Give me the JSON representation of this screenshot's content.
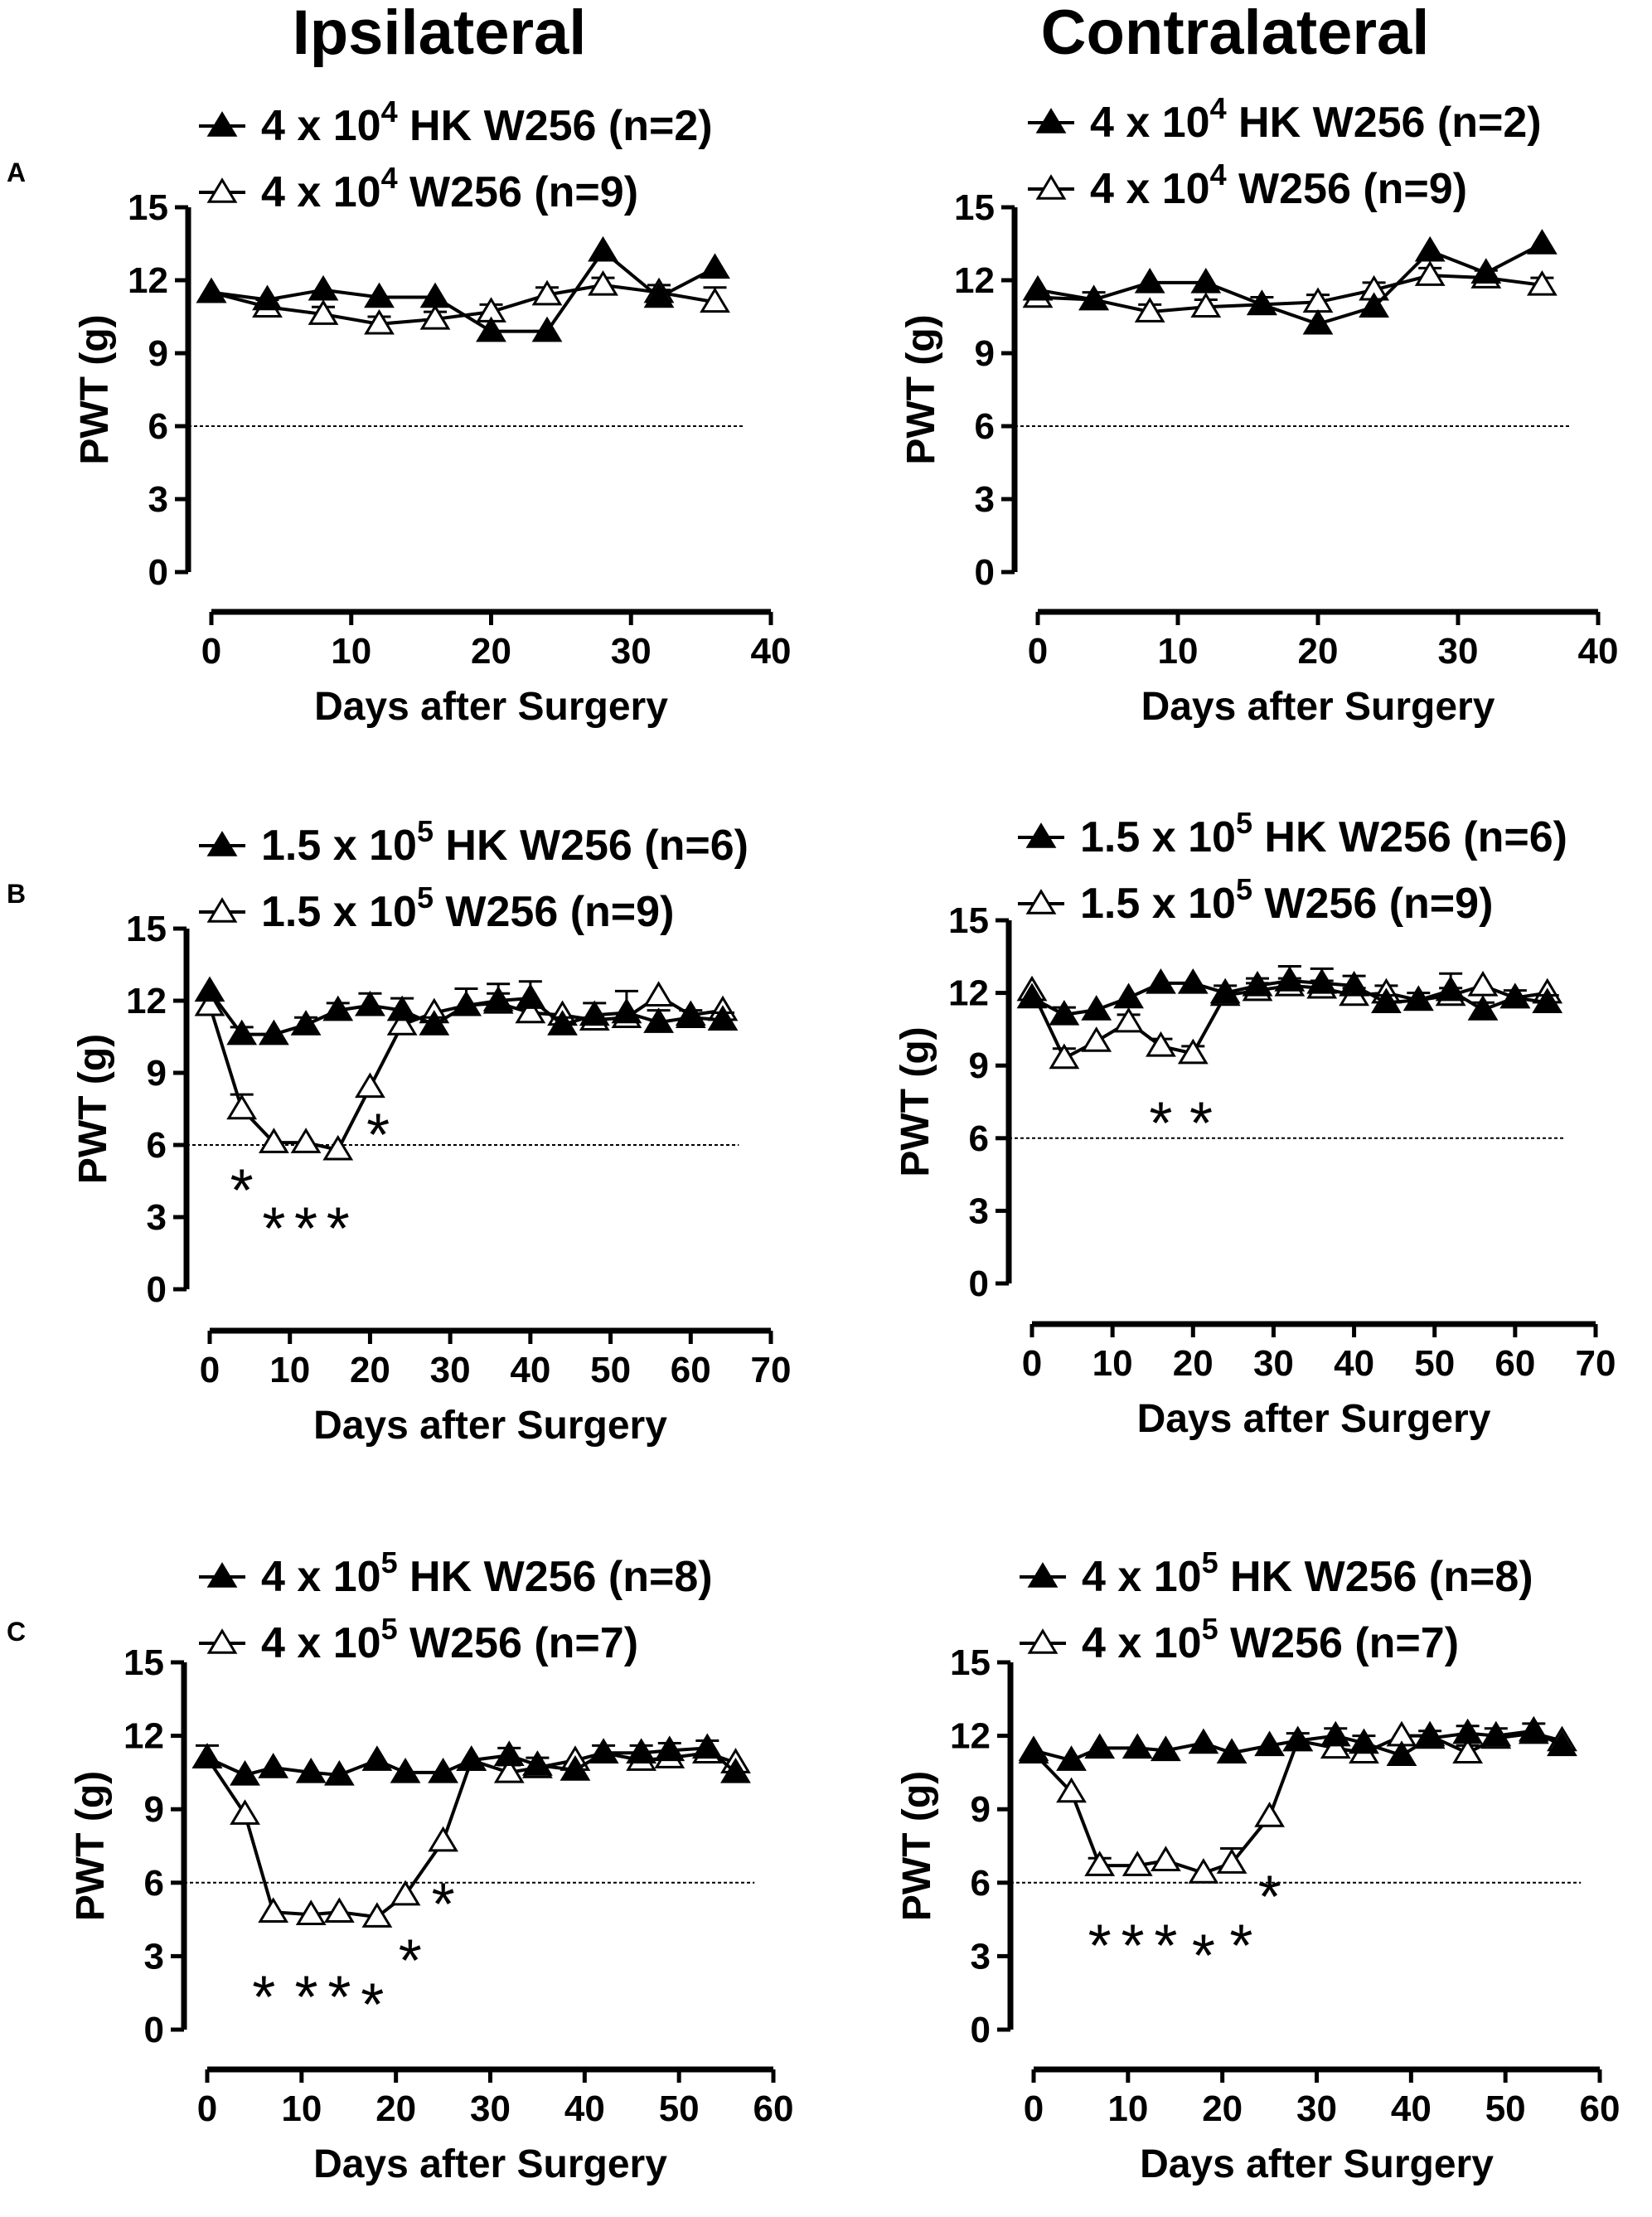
{
  "titles": {
    "left": "Ipsilateral",
    "right": "Contralateral"
  },
  "row_letters": [
    "A",
    "B",
    "C"
  ],
  "common": {
    "ylabel": "PWT (g)",
    "xlabel": "Days after Surgery",
    "threshold": 6,
    "ylim": [
      0,
      15
    ],
    "yticks": [
      0,
      3,
      6,
      9,
      12,
      15
    ]
  },
  "chart_data": [
    {
      "type": "line",
      "panel": "A",
      "side": "Ipsilateral",
      "xlim": [
        0,
        40
      ],
      "xticks": [
        0,
        10,
        20,
        30,
        40
      ],
      "legend": [
        {
          "prefix": "4 x 10",
          "sup": "4",
          "suffix": " HK W256 (n=2)"
        },
        {
          "prefix": "4 x 10",
          "sup": "4",
          "suffix": " W256 (n=9)"
        }
      ],
      "series": [
        {
          "name": "4 x 10^4 HK W256 (n=2)",
          "marker": "filled-triangle",
          "x": [
            0,
            4,
            8,
            12,
            16,
            20,
            24,
            28,
            32,
            36
          ],
          "y": [
            11.5,
            11.2,
            11.6,
            11.3,
            11.3,
            9.9,
            9.9,
            13.2,
            11.3,
            12.5
          ],
          "err": [
            0,
            0,
            0,
            0,
            0,
            0,
            0,
            0,
            0.3,
            0
          ]
        },
        {
          "name": "4 x 10^4 W256 (n=9)",
          "marker": "open-triangle",
          "x": [
            0,
            4,
            8,
            12,
            16,
            20,
            24,
            28,
            32,
            36
          ],
          "y": [
            11.5,
            10.9,
            10.6,
            10.2,
            10.4,
            10.7,
            11.4,
            11.8,
            11.5,
            11.1
          ],
          "err": [
            0,
            0.3,
            0.3,
            0.3,
            0.3,
            0.3,
            0.3,
            0.3,
            0.3,
            0.6
          ]
        }
      ],
      "stars": []
    },
    {
      "type": "line",
      "panel": "A",
      "side": "Contralateral",
      "xlim": [
        0,
        40
      ],
      "xticks": [
        0,
        10,
        20,
        30,
        40
      ],
      "legend": [
        {
          "prefix": "4 x 10",
          "sup": "4",
          "suffix": " HK W256 (n=2)"
        },
        {
          "prefix": "4 x 10",
          "sup": "4",
          "suffix": " W256 (n=9)"
        }
      ],
      "series": [
        {
          "name": "4 x 10^4 HK W256 (n=2)",
          "marker": "filled-triangle",
          "x": [
            0,
            4,
            8,
            12,
            16,
            20,
            24,
            28,
            32,
            36
          ],
          "y": [
            11.6,
            11.2,
            11.9,
            11.9,
            11.0,
            10.2,
            10.9,
            13.2,
            12.3,
            13.5
          ],
          "err": [
            0,
            0,
            0,
            0,
            0,
            0,
            0,
            0,
            0,
            0
          ]
        },
        {
          "name": "4 x 10^4 W256 (n=9)",
          "marker": "open-triangle",
          "x": [
            0,
            4,
            8,
            12,
            16,
            20,
            24,
            28,
            32,
            36
          ],
          "y": [
            11.3,
            11.2,
            10.7,
            10.9,
            11.0,
            11.1,
            11.6,
            12.2,
            12.1,
            11.8
          ],
          "err": [
            0,
            0.3,
            0.3,
            0.3,
            0.3,
            0.3,
            0.3,
            0.3,
            0.3,
            0.3
          ]
        }
      ],
      "stars": []
    },
    {
      "type": "line",
      "panel": "B",
      "side": "Ipsilateral",
      "xlim": [
        0,
        70
      ],
      "xticks": [
        0,
        10,
        20,
        30,
        40,
        50,
        60,
        70
      ],
      "legend": [
        {
          "prefix": "1.5 x 10",
          "sup": "5",
          "suffix": " HK W256 (n=6)"
        },
        {
          "prefix": "1.5 x 10",
          "sup": "5",
          "suffix": " W256 (n=9)"
        }
      ],
      "series": [
        {
          "name": "1.5 x 10^5 HK W256 (n=6)",
          "marker": "filled-triangle",
          "x": [
            0,
            4,
            8,
            12,
            16,
            20,
            24,
            28,
            32,
            36,
            40,
            44,
            48,
            52,
            56,
            60,
            64
          ],
          "y": [
            12.4,
            10.6,
            10.6,
            11.0,
            11.6,
            11.8,
            11.6,
            11.0,
            11.8,
            12.0,
            12.1,
            11.0,
            11.4,
            11.5,
            11.1,
            11.3,
            11.2
          ],
          "err": [
            0,
            0.3,
            0,
            0.3,
            0.3,
            0.5,
            0.5,
            0.3,
            0.7,
            0.7,
            0.7,
            0.3,
            0.5,
            0.9,
            0.5,
            0.3,
            0.3
          ]
        },
        {
          "name": "1.5 x 10^5 W256 (n=9)",
          "marker": "open-triangle",
          "x": [
            0,
            4,
            8,
            12,
            16,
            20,
            24,
            28,
            32,
            36,
            40,
            44,
            48,
            52,
            56,
            60,
            64
          ],
          "y": [
            11.8,
            7.5,
            6.1,
            6.1,
            5.8,
            8.4,
            11.0,
            11.5,
            11.8,
            11.9,
            11.5,
            11.4,
            11.2,
            11.3,
            12.2,
            11.4,
            11.6
          ],
          "err": [
            0,
            0.6,
            0,
            0,
            0,
            0,
            0,
            0,
            0,
            0.4,
            0,
            0,
            0,
            0,
            0,
            0,
            0
          ]
        }
      ],
      "stars": [
        {
          "x": 4,
          "y": 4.3,
          "label": "*"
        },
        {
          "x": 8,
          "y": 2.7,
          "label": "*"
        },
        {
          "x": 12,
          "y": 2.7,
          "label": "*"
        },
        {
          "x": 16,
          "y": 2.7,
          "label": "*"
        },
        {
          "x": 21,
          "y": 6.6,
          "label": "*"
        }
      ]
    },
    {
      "type": "line",
      "panel": "B",
      "side": "Contralateral",
      "xlim": [
        0,
        70
      ],
      "xticks": [
        0,
        10,
        20,
        30,
        40,
        50,
        60,
        70
      ],
      "legend": [
        {
          "prefix": "1.5 x 10",
          "sup": "5",
          "suffix": " HK W256 (n=6)"
        },
        {
          "prefix": "1.5 x 10",
          "sup": "5",
          "suffix": " W256 (n=9)"
        }
      ],
      "series": [
        {
          "name": "1.5 x 10^5 HK W256 (n=6)",
          "marker": "filled-triangle",
          "x": [
            0,
            4,
            8,
            12,
            16,
            20,
            24,
            28,
            32,
            36,
            40,
            44,
            48,
            52,
            56,
            60,
            64
          ],
          "y": [
            11.8,
            11.1,
            11.3,
            11.8,
            12.4,
            12.4,
            12.0,
            12.3,
            12.5,
            12.4,
            12.3,
            11.6,
            11.7,
            12.1,
            11.3,
            11.8,
            11.6
          ],
          "err": [
            0,
            0.3,
            0,
            0,
            0,
            0,
            0.3,
            0.3,
            0.6,
            0.6,
            0.4,
            0.3,
            0.3,
            0.7,
            0.3,
            0.3,
            0.3
          ]
        },
        {
          "name": "1.5 x 10^5 W256 (n=9)",
          "marker": "open-triangle",
          "x": [
            0,
            4,
            8,
            12,
            16,
            20,
            24,
            28,
            32,
            36,
            40,
            44,
            48,
            52,
            56,
            60,
            64
          ],
          "y": [
            12.1,
            9.3,
            10.0,
            10.8,
            9.8,
            9.5,
            11.9,
            12.1,
            12.3,
            12.2,
            11.9,
            12.0,
            11.7,
            11.9,
            12.3,
            11.8,
            12.0
          ],
          "err": [
            0,
            0.4,
            0,
            0.3,
            0.3,
            0.3,
            0,
            0.3,
            0.3,
            0.3,
            0.3,
            0.3,
            0,
            0.3,
            0,
            0,
            0
          ]
        }
      ],
      "stars": [
        {
          "x": 16,
          "y": 6.8,
          "label": "*"
        },
        {
          "x": 21,
          "y": 6.8,
          "label": "*"
        }
      ]
    },
    {
      "type": "line",
      "panel": "C",
      "side": "Ipsilateral",
      "xlim": [
        0,
        60
      ],
      "xticks": [
        0,
        10,
        20,
        30,
        40,
        50,
        60
      ],
      "legend": [
        {
          "prefix": "4 x 10",
          "sup": "5",
          "suffix": " HK W256 (n=8)"
        },
        {
          "prefix": "4 x 10",
          "sup": "5",
          "suffix": " W256 (n=7)"
        }
      ],
      "series": [
        {
          "name": "4 x 10^5 HK W256 (n=8)",
          "marker": "filled-triangle",
          "x": [
            0,
            4,
            7,
            11,
            14,
            18,
            21,
            25,
            28,
            32,
            35,
            39,
            42,
            46,
            49,
            53,
            56
          ],
          "y": [
            11.1,
            10.4,
            10.7,
            10.5,
            10.4,
            11.0,
            10.5,
            10.5,
            11.0,
            11.2,
            10.8,
            10.6,
            11.3,
            11.3,
            11.4,
            11.5,
            10.5
          ],
          "err": [
            0.5,
            0,
            0,
            0,
            0,
            0,
            0,
            0,
            0,
            0.3,
            0.3,
            0,
            0.3,
            0.3,
            0.3,
            0.3,
            0
          ]
        },
        {
          "name": "4 x 10^5 W256 (n=7)",
          "marker": "open-triangle",
          "x": [
            0,
            4,
            7,
            11,
            14,
            18,
            21,
            25,
            28,
            32,
            35,
            39,
            42,
            46,
            49,
            53,
            56
          ],
          "y": [
            11.1,
            8.8,
            4.8,
            4.7,
            4.8,
            4.6,
            5.5,
            7.7,
            11.0,
            10.5,
            10.7,
            11.0,
            11.3,
            11.0,
            11.1,
            11.3,
            10.9
          ],
          "err": [
            0,
            0,
            0,
            0,
            0,
            0,
            0,
            0,
            0,
            0.3,
            0,
            0,
            0,
            0,
            0,
            0,
            0
          ]
        }
      ],
      "stars": [
        {
          "x": 6,
          "y": 1.5,
          "label": "*"
        },
        {
          "x": 10.5,
          "y": 1.5,
          "label": "*"
        },
        {
          "x": 14,
          "y": 1.5,
          "label": "*"
        },
        {
          "x": 17.5,
          "y": 1.2,
          "label": "*"
        },
        {
          "x": 21.5,
          "y": 3.0,
          "label": "*"
        },
        {
          "x": 25,
          "y": 5.3,
          "label": "*"
        }
      ]
    },
    {
      "type": "line",
      "panel": "C",
      "side": "Contralateral",
      "xlim": [
        0,
        60
      ],
      "xticks": [
        0,
        10,
        20,
        30,
        40,
        50,
        60
      ],
      "legend": [
        {
          "prefix": "4 x 10",
          "sup": "5",
          "suffix": " HK W256 (n=8)"
        },
        {
          "prefix": "4 x 10",
          "sup": "5",
          "suffix": " W256 (n=7)"
        }
      ],
      "series": [
        {
          "name": "4 x 10^5 HK W256 (n=8)",
          "marker": "filled-triangle",
          "x": [
            0,
            4,
            7,
            11,
            14,
            18,
            21,
            25,
            28,
            32,
            35,
            39,
            42,
            46,
            49,
            53,
            56
          ],
          "y": [
            11.4,
            11.0,
            11.5,
            11.5,
            11.4,
            11.7,
            11.3,
            11.6,
            11.8,
            12.0,
            11.7,
            11.2,
            11.9,
            12.1,
            12.0,
            12.2,
            11.6
          ],
          "err": [
            0,
            0,
            0,
            0,
            0,
            0,
            0,
            0,
            0.3,
            0.3,
            0.3,
            0,
            0.3,
            0.3,
            0.3,
            0.3,
            0
          ]
        },
        {
          "name": "4 x 10^5 W256 (n=7)",
          "marker": "open-triangle",
          "x": [
            0,
            4,
            7,
            11,
            14,
            18,
            21,
            25,
            28,
            32,
            35,
            39,
            42,
            46,
            49,
            53,
            56
          ],
          "y": [
            11.3,
            9.7,
            6.7,
            6.7,
            6.9,
            6.4,
            6.8,
            8.7,
            11.8,
            11.5,
            11.3,
            12.0,
            12.0,
            11.3,
            11.9,
            12.1,
            11.8
          ],
          "err": [
            0,
            0,
            0.3,
            0,
            0,
            0,
            0.6,
            0,
            0,
            0.3,
            0,
            0,
            0,
            0.3,
            0,
            0,
            0
          ]
        }
      ],
      "stars": [
        {
          "x": 7,
          "y": 3.6,
          "label": "*"
        },
        {
          "x": 10.5,
          "y": 3.6,
          "label": "*"
        },
        {
          "x": 14,
          "y": 3.6,
          "label": "*"
        },
        {
          "x": 18,
          "y": 3.2,
          "label": "*"
        },
        {
          "x": 22,
          "y": 3.6,
          "label": "*"
        },
        {
          "x": 25,
          "y": 5.6,
          "label": "*"
        }
      ]
    }
  ]
}
